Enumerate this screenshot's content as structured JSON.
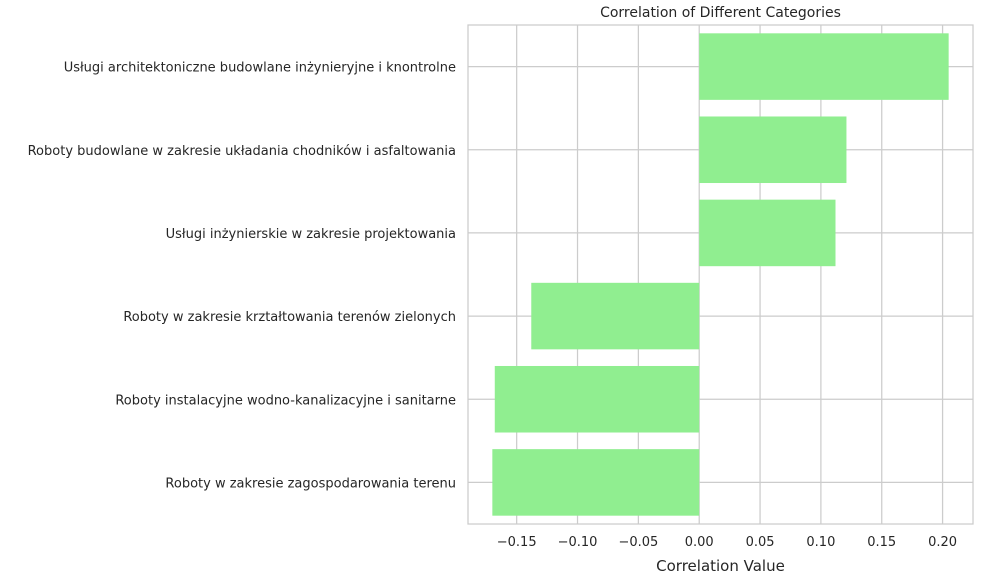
{
  "chart_data": {
    "type": "bar",
    "orientation": "horizontal",
    "title": "Correlation of Different Categories",
    "xlabel": "Correlation Value",
    "ylabel": "",
    "xlim": [
      -0.19,
      0.225
    ],
    "grid": true,
    "bar_color": "#90ee90",
    "categories": [
      "Usługi architektoniczne budowlane inżynieryjne i knontrolne",
      "Roboty budowlane w zakresie układania chodników i asfaltowania",
      "Usługi inżynierskie w zakresie projektowania",
      "Roboty w zakresie krztałtowania terenów zielonych",
      "Roboty instalacyjne wodno-kanalizacyjne i sanitarne",
      "Roboty w zakresie zagospodarowania terenu"
    ],
    "values": [
      0.205,
      0.121,
      0.112,
      -0.138,
      -0.168,
      -0.17
    ],
    "xticks": [
      -0.15,
      -0.1,
      -0.05,
      0.0,
      0.05,
      0.1,
      0.15,
      0.2
    ],
    "xtick_labels": [
      "−0.15",
      "−0.10",
      "−0.05",
      "0.00",
      "0.05",
      "0.10",
      "0.15",
      "0.20"
    ]
  }
}
